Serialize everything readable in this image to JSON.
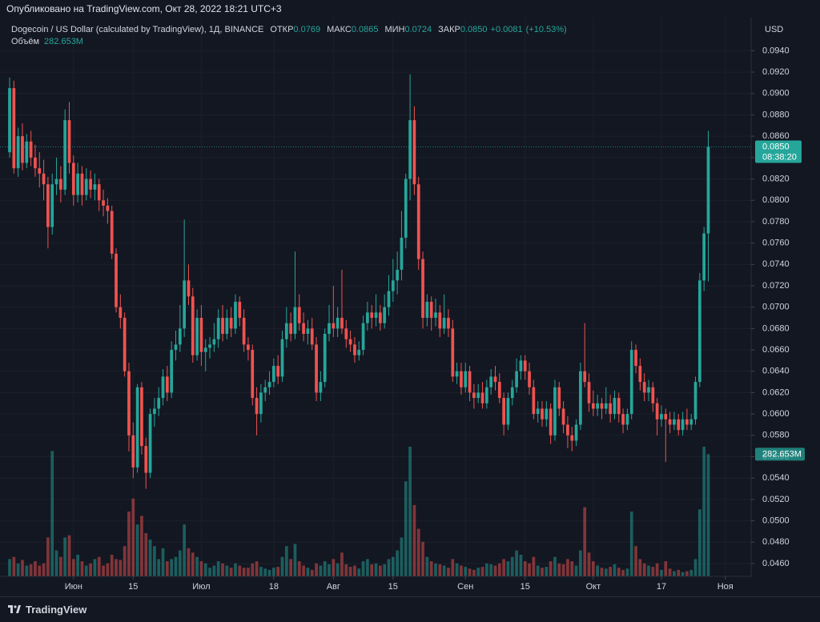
{
  "chart_data": {
    "type": "candlestick",
    "published": "Опубликовано на TradingView.com, Окт 28, 2022 18:21 UTC+3",
    "legend": {
      "symbol": "Dogecoin / US Dollar (calculated by TradingView), 1Д, BINANCE",
      "fields": [
        {
          "name": "ОТКР",
          "value": 0.0769
        },
        {
          "name": "МАКС",
          "value": 0.0865
        },
        {
          "name": "МИН",
          "value": 0.0724
        },
        {
          "name": "ЗАКР",
          "value": {
            "value": 0.085,
            "label": "0.0850"
          }
        }
      ],
      "change": {
        "value": 0.0081,
        "label": "+0.0081"
      },
      "change_pct": {
        "value": 10.53,
        "label": "(+10.53%)"
      }
    },
    "volume_legend": {
      "name": "Объём",
      "value": {
        "value": 282.653,
        "label": "282.653M"
      }
    },
    "currency": "USD",
    "price_tag": {
      "value": 0.085,
      "label": "0.0850"
    },
    "countdown": "08:38:20",
    "volume_tag": {
      "value": 282.653,
      "label": "282.653M"
    },
    "brand": "TradingView",
    "up_color": "#26a69a",
    "down_color": "#ef5350",
    "grid": true,
    "xlim": [
      -2.26,
      174.06
    ],
    "xticks": [
      {
        "value": 15,
        "label": "Июн"
      },
      {
        "value": 29,
        "label": "15"
      },
      {
        "value": 45,
        "label": "Июл"
      },
      {
        "value": 62,
        "label": "18"
      },
      {
        "value": 76,
        "label": "Авг"
      },
      {
        "value": 90,
        "label": "15"
      },
      {
        "value": 107,
        "label": "Сен"
      },
      {
        "value": 121,
        "label": "15"
      },
      {
        "value": 137,
        "label": "Окт"
      },
      {
        "value": 153,
        "label": "17"
      },
      {
        "value": 168,
        "label": "Ноя"
      }
    ],
    "ylim": [
      0.0448,
      0.0971
    ],
    "yticks": [
      {
        "value": 0.046,
        "label": "0.0460"
      },
      {
        "value": 0.048,
        "label": "0.0480"
      },
      {
        "value": 0.05,
        "label": "0.0500"
      },
      {
        "value": 0.052,
        "label": "0.0520"
      },
      {
        "value": 0.054,
        "label": "0.0540"
      },
      {
        "value": 0.056,
        "label": "0.0560"
      },
      {
        "value": 0.058,
        "label": "0.0580"
      },
      {
        "value": 0.06,
        "label": "0.0600"
      },
      {
        "value": 0.062,
        "label": "0.0620"
      },
      {
        "value": 0.064,
        "label": "0.0640"
      },
      {
        "value": 0.066,
        "label": "0.0660"
      },
      {
        "value": 0.068,
        "label": "0.0680"
      },
      {
        "value": 0.07,
        "label": "0.0700"
      },
      {
        "value": 0.072,
        "label": "0.0720"
      },
      {
        "value": 0.074,
        "label": "0.0740"
      },
      {
        "value": 0.076,
        "label": "0.0760"
      },
      {
        "value": 0.078,
        "label": "0.0780"
      },
      {
        "value": 0.08,
        "label": "0.0800"
      },
      {
        "value": 0.082,
        "label": "0.0820"
      },
      {
        "value": 0.084,
        "label": "0.0840"
      },
      {
        "value": 0.086,
        "label": "0.0860"
      },
      {
        "value": 0.088,
        "label": "0.0880"
      },
      {
        "value": 0.09,
        "label": "0.0900"
      },
      {
        "value": 0.092,
        "label": "0.0920"
      },
      {
        "value": 0.094,
        "label": "0.0940"
      }
    ],
    "vlim": [
      0,
      400
    ],
    "candles": [
      [
        0.0845,
        0.0915,
        0.084,
        0.0905
      ],
      [
        0.0905,
        0.0912,
        0.0825,
        0.083
      ],
      [
        0.083,
        0.0868,
        0.0822,
        0.086
      ],
      [
        0.086,
        0.0872,
        0.0828,
        0.0835
      ],
      [
        0.0835,
        0.0862,
        0.083,
        0.0855
      ],
      [
        0.0855,
        0.0865,
        0.0832,
        0.084
      ],
      [
        0.084,
        0.0852,
        0.0822,
        0.083
      ],
      [
        0.083,
        0.0845,
        0.0812,
        0.0825
      ],
      [
        0.0825,
        0.0838,
        0.08,
        0.0815
      ],
      [
        0.0815,
        0.0822,
        0.0755,
        0.0775
      ],
      [
        0.0775,
        0.0825,
        0.0768,
        0.0815
      ],
      [
        0.0815,
        0.084,
        0.0805,
        0.082
      ],
      [
        0.082,
        0.0832,
        0.0798,
        0.081
      ],
      [
        0.081,
        0.0885,
        0.0805,
        0.0875
      ],
      [
        0.0875,
        0.0892,
        0.0825,
        0.0835
      ],
      [
        0.0835,
        0.0842,
        0.0795,
        0.0805
      ],
      [
        0.0805,
        0.0835,
        0.0798,
        0.0825
      ],
      [
        0.0825,
        0.0832,
        0.0795,
        0.0805
      ],
      [
        0.0805,
        0.083,
        0.08,
        0.082
      ],
      [
        0.082,
        0.0828,
        0.0802,
        0.081
      ],
      [
        0.081,
        0.0825,
        0.08,
        0.0815
      ],
      [
        0.0815,
        0.082,
        0.079,
        0.08
      ],
      [
        0.08,
        0.081,
        0.0785,
        0.0795
      ],
      [
        0.0795,
        0.0802,
        0.0778,
        0.079
      ],
      [
        0.079,
        0.0795,
        0.0745,
        0.075
      ],
      [
        0.075,
        0.0755,
        0.0695,
        0.07
      ],
      [
        0.07,
        0.0712,
        0.068,
        0.069
      ],
      [
        0.069,
        0.0695,
        0.0635,
        0.064
      ],
      [
        0.064,
        0.0648,
        0.0565,
        0.058
      ],
      [
        0.058,
        0.0592,
        0.054,
        0.055
      ],
      [
        0.055,
        0.0628,
        0.0545,
        0.0625
      ],
      [
        0.0625,
        0.063,
        0.0562,
        0.057
      ],
      [
        0.057,
        0.0578,
        0.053,
        0.0545
      ],
      [
        0.0545,
        0.0605,
        0.054,
        0.06
      ],
      [
        0.06,
        0.0615,
        0.0588,
        0.0605
      ],
      [
        0.0605,
        0.0625,
        0.0598,
        0.0615
      ],
      [
        0.0615,
        0.0642,
        0.0608,
        0.0635
      ],
      [
        0.0635,
        0.0645,
        0.0612,
        0.062
      ],
      [
        0.062,
        0.0668,
        0.0615,
        0.066
      ],
      [
        0.066,
        0.0678,
        0.065,
        0.0665
      ],
      [
        0.0665,
        0.0702,
        0.0658,
        0.068
      ],
      [
        0.068,
        0.0782,
        0.0672,
        0.0725
      ],
      [
        0.0725,
        0.074,
        0.0702,
        0.071
      ],
      [
        0.071,
        0.0718,
        0.0648,
        0.0655
      ],
      [
        0.0655,
        0.0698,
        0.065,
        0.069
      ],
      [
        0.069,
        0.0702,
        0.0645,
        0.0658
      ],
      [
        0.0658,
        0.067,
        0.064,
        0.0662
      ],
      [
        0.0662,
        0.0672,
        0.0652,
        0.0665
      ],
      [
        0.0665,
        0.0685,
        0.0658,
        0.067
      ],
      [
        0.067,
        0.0698,
        0.0662,
        0.069
      ],
      [
        0.069,
        0.0702,
        0.0668,
        0.0675
      ],
      [
        0.0675,
        0.0698,
        0.067,
        0.069
      ],
      [
        0.069,
        0.07,
        0.0672,
        0.068
      ],
      [
        0.068,
        0.0712,
        0.0675,
        0.0705
      ],
      [
        0.0705,
        0.071,
        0.0682,
        0.069
      ],
      [
        0.069,
        0.0698,
        0.0658,
        0.0665
      ],
      [
        0.0665,
        0.0672,
        0.065,
        0.066
      ],
      [
        0.066,
        0.0665,
        0.0608,
        0.0615
      ],
      [
        0.0615,
        0.0625,
        0.058,
        0.06
      ],
      [
        0.06,
        0.0628,
        0.0592,
        0.062
      ],
      [
        0.062,
        0.0632,
        0.0612,
        0.0625
      ],
      [
        0.0625,
        0.064,
        0.0618,
        0.063
      ],
      [
        0.063,
        0.0652,
        0.0625,
        0.0645
      ],
      [
        0.0645,
        0.0655,
        0.0628,
        0.0635
      ],
      [
        0.0635,
        0.0678,
        0.063,
        0.067
      ],
      [
        0.067,
        0.07,
        0.0662,
        0.0685
      ],
      [
        0.0685,
        0.0695,
        0.0668,
        0.0675
      ],
      [
        0.0675,
        0.0752,
        0.067,
        0.07
      ],
      [
        0.07,
        0.0712,
        0.0678,
        0.0685
      ],
      [
        0.0685,
        0.0695,
        0.0668,
        0.0675
      ],
      [
        0.0675,
        0.0688,
        0.0665,
        0.068
      ],
      [
        0.068,
        0.069,
        0.066,
        0.0665
      ],
      [
        0.0665,
        0.0672,
        0.0612,
        0.062
      ],
      [
        0.062,
        0.064,
        0.0612,
        0.063
      ],
      [
        0.063,
        0.068,
        0.0625,
        0.0675
      ],
      [
        0.0675,
        0.0702,
        0.0668,
        0.0685
      ],
      [
        0.0685,
        0.072,
        0.0672,
        0.068
      ],
      [
        0.068,
        0.07,
        0.0672,
        0.069
      ],
      [
        0.069,
        0.0735,
        0.0675,
        0.068
      ],
      [
        0.068,
        0.0688,
        0.0662,
        0.067
      ],
      [
        0.067,
        0.0678,
        0.0658,
        0.0665
      ],
      [
        0.0665,
        0.0672,
        0.0648,
        0.0655
      ],
      [
        0.0655,
        0.0668,
        0.065,
        0.066
      ],
      [
        0.066,
        0.0692,
        0.0655,
        0.0685
      ],
      [
        0.0685,
        0.0705,
        0.0678,
        0.0695
      ],
      [
        0.0695,
        0.0702,
        0.068,
        0.069
      ],
      [
        0.069,
        0.0712,
        0.0682,
        0.0695
      ],
      [
        0.0695,
        0.0702,
        0.0678,
        0.0685
      ],
      [
        0.0685,
        0.0712,
        0.068,
        0.07
      ],
      [
        0.07,
        0.073,
        0.0692,
        0.0715
      ],
      [
        0.0715,
        0.0745,
        0.0705,
        0.0725
      ],
      [
        0.0725,
        0.0752,
        0.0712,
        0.0735
      ],
      [
        0.0735,
        0.079,
        0.0725,
        0.0765
      ],
      [
        0.0765,
        0.0825,
        0.0755,
        0.082
      ],
      [
        0.082,
        0.0918,
        0.08,
        0.0875
      ],
      [
        0.0875,
        0.0888,
        0.0805,
        0.0815
      ],
      [
        0.0815,
        0.0822,
        0.0735,
        0.0745
      ],
      [
        0.0745,
        0.0752,
        0.068,
        0.069
      ],
      [
        0.069,
        0.0712,
        0.0682,
        0.0705
      ],
      [
        0.0705,
        0.071,
        0.0678,
        0.069
      ],
      [
        0.069,
        0.0708,
        0.0682,
        0.0695
      ],
      [
        0.0695,
        0.0702,
        0.0672,
        0.068
      ],
      [
        0.068,
        0.0712,
        0.0675,
        0.069
      ],
      [
        0.069,
        0.0698,
        0.0672,
        0.068
      ],
      [
        0.068,
        0.0688,
        0.063,
        0.0635
      ],
      [
        0.0635,
        0.0648,
        0.0628,
        0.064
      ],
      [
        0.064,
        0.0648,
        0.0618,
        0.0625
      ],
      [
        0.0625,
        0.0648,
        0.062,
        0.064
      ],
      [
        0.064,
        0.0645,
        0.0612,
        0.062
      ],
      [
        0.062,
        0.0628,
        0.0605,
        0.0615
      ],
      [
        0.0615,
        0.0628,
        0.061,
        0.062
      ],
      [
        0.062,
        0.063,
        0.0605,
        0.061
      ],
      [
        0.061,
        0.0632,
        0.0605,
        0.0625
      ],
      [
        0.0625,
        0.0642,
        0.0618,
        0.0635
      ],
      [
        0.0635,
        0.0645,
        0.0622,
        0.063
      ],
      [
        0.063,
        0.0638,
        0.061,
        0.0615
      ],
      [
        0.0615,
        0.062,
        0.058,
        0.059
      ],
      [
        0.059,
        0.062,
        0.0585,
        0.0615
      ],
      [
        0.0615,
        0.0632,
        0.0608,
        0.0625
      ],
      [
        0.0625,
        0.0652,
        0.062,
        0.064
      ],
      [
        0.064,
        0.0655,
        0.0632,
        0.065
      ],
      [
        0.065,
        0.0655,
        0.0632,
        0.064
      ],
      [
        0.064,
        0.0648,
        0.0618,
        0.0625
      ],
      [
        0.0625,
        0.0632,
        0.0595,
        0.06
      ],
      [
        0.06,
        0.0612,
        0.0592,
        0.0605
      ],
      [
        0.0605,
        0.0612,
        0.0588,
        0.0595
      ],
      [
        0.0595,
        0.0612,
        0.0588,
        0.0605
      ],
      [
        0.0605,
        0.061,
        0.0572,
        0.058
      ],
      [
        0.058,
        0.0632,
        0.0575,
        0.0625
      ],
      [
        0.0625,
        0.063,
        0.0598,
        0.0605
      ],
      [
        0.0605,
        0.0612,
        0.0582,
        0.059
      ],
      [
        0.059,
        0.0598,
        0.0568,
        0.058
      ],
      [
        0.058,
        0.0588,
        0.0565,
        0.0575
      ],
      [
        0.0575,
        0.0595,
        0.057,
        0.059
      ],
      [
        0.059,
        0.0648,
        0.0585,
        0.064
      ],
      [
        0.064,
        0.0685,
        0.0625,
        0.063
      ],
      [
        0.063,
        0.0638,
        0.0602,
        0.061
      ],
      [
        0.061,
        0.0622,
        0.0598,
        0.0605
      ],
      [
        0.0605,
        0.0618,
        0.0598,
        0.061
      ],
      [
        0.061,
        0.0615,
        0.0595,
        0.0605
      ],
      [
        0.0605,
        0.0625,
        0.06,
        0.061
      ],
      [
        0.061,
        0.0618,
        0.0592,
        0.06
      ],
      [
        0.06,
        0.0622,
        0.0595,
        0.0615
      ],
      [
        0.0615,
        0.062,
        0.0592,
        0.06
      ],
      [
        0.06,
        0.0605,
        0.0582,
        0.059
      ],
      [
        0.059,
        0.0605,
        0.0585,
        0.06
      ],
      [
        0.06,
        0.0668,
        0.0595,
        0.066
      ],
      [
        0.066,
        0.0665,
        0.0638,
        0.0645
      ],
      [
        0.0645,
        0.0652,
        0.0622,
        0.063
      ],
      [
        0.063,
        0.0638,
        0.0612,
        0.062
      ],
      [
        0.062,
        0.0632,
        0.0612,
        0.0625
      ],
      [
        0.0625,
        0.063,
        0.0602,
        0.061
      ],
      [
        0.061,
        0.0615,
        0.058,
        0.0595
      ],
      [
        0.0595,
        0.0608,
        0.0588,
        0.06
      ],
      [
        0.06,
        0.0605,
        0.0555,
        0.0595
      ],
      [
        0.0595,
        0.0602,
        0.0582,
        0.059
      ],
      [
        0.059,
        0.0602,
        0.0585,
        0.0595
      ],
      [
        0.0595,
        0.06,
        0.058,
        0.0585
      ],
      [
        0.0585,
        0.0602,
        0.058,
        0.0595
      ],
      [
        0.0595,
        0.0605,
        0.0585,
        0.059
      ],
      [
        0.059,
        0.06,
        0.0585,
        0.0595
      ],
      [
        0.0595,
        0.0635,
        0.059,
        0.063
      ],
      [
        0.063,
        0.0732,
        0.0625,
        0.0725
      ],
      [
        0.0725,
        0.0775,
        0.0715,
        0.0769
      ],
      [
        0.0769,
        0.0865,
        0.0724,
        0.085
      ]
    ],
    "volumes": [
      40,
      45,
      30,
      38,
      25,
      28,
      35,
      25,
      30,
      90,
      290,
      60,
      45,
      90,
      95,
      40,
      50,
      35,
      25,
      30,
      40,
      45,
      25,
      30,
      50,
      40,
      38,
      70,
      150,
      180,
      120,
      140,
      100,
      85,
      70,
      40,
      65,
      35,
      40,
      45,
      60,
      120,
      65,
      55,
      45,
      35,
      30,
      20,
      25,
      35,
      30,
      25,
      20,
      30,
      25,
      20,
      20,
      30,
      35,
      22,
      18,
      15,
      20,
      22,
      45,
      70,
      40,
      75,
      35,
      25,
      20,
      15,
      30,
      25,
      35,
      28,
      40,
      30,
      55,
      28,
      22,
      25,
      18,
      35,
      40,
      28,
      30,
      25,
      28,
      40,
      45,
      60,
      90,
      220,
      300,
      165,
      110,
      80,
      45,
      35,
      30,
      28,
      25,
      20,
      40,
      30,
      25,
      22,
      18,
      15,
      20,
      22,
      30,
      28,
      25,
      30,
      40,
      35,
      45,
      60,
      50,
      35,
      30,
      45,
      25,
      20,
      22,
      35,
      45,
      30,
      28,
      40,
      35,
      25,
      60,
      160,
      55,
      35,
      25,
      20,
      18,
      22,
      28,
      20,
      15,
      18,
      150,
      70,
      40,
      30,
      25,
      22,
      30,
      15,
      35,
      18,
      12,
      15,
      10,
      12,
      15,
      40,
      155,
      300,
      282.653
    ]
  }
}
